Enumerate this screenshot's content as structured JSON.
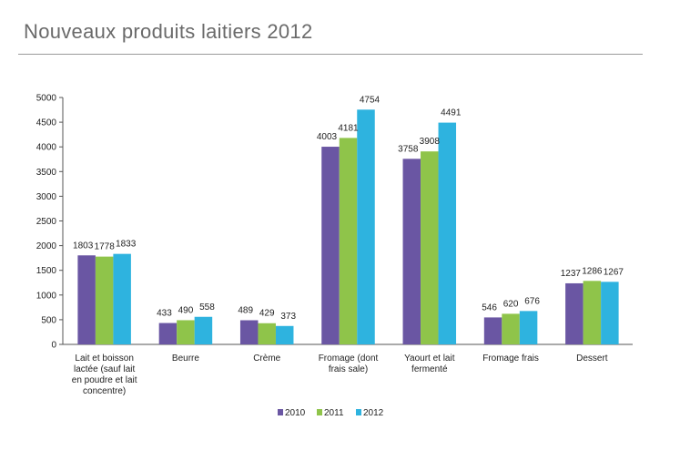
{
  "page_title": "Nouveaux produits laitiers 2012",
  "chart_data": {
    "type": "bar",
    "title": "",
    "xlabel": "",
    "ylabel": "",
    "ylim": [
      0,
      5000
    ],
    "yticks": [
      0,
      500,
      1000,
      1500,
      2000,
      2500,
      3000,
      3500,
      4000,
      4500,
      5000
    ],
    "grid": false,
    "legend_position": "bottom",
    "categories": [
      [
        "Lait et boisson",
        "lactée (sauf lait",
        "en poudre et lait",
        "concentre)"
      ],
      [
        "Beurre"
      ],
      [
        "Crème"
      ],
      [
        "Fromage (dont",
        "frais sale)"
      ],
      [
        "Yaourt et lait",
        "fermenté"
      ],
      [
        "Fromage frais"
      ],
      [
        "Dessert"
      ]
    ],
    "series": [
      {
        "name": "2010",
        "color": "#6a56a3",
        "values": [
          1803,
          433,
          489,
          4003,
          3758,
          546,
          1237
        ]
      },
      {
        "name": "2011",
        "color": "#8fc44a",
        "values": [
          1778,
          490,
          429,
          4181,
          3908,
          620,
          1286
        ]
      },
      {
        "name": "2012",
        "color": "#2eb3df",
        "values": [
          1833,
          558,
          373,
          4754,
          4491,
          676,
          1267
        ]
      }
    ]
  }
}
